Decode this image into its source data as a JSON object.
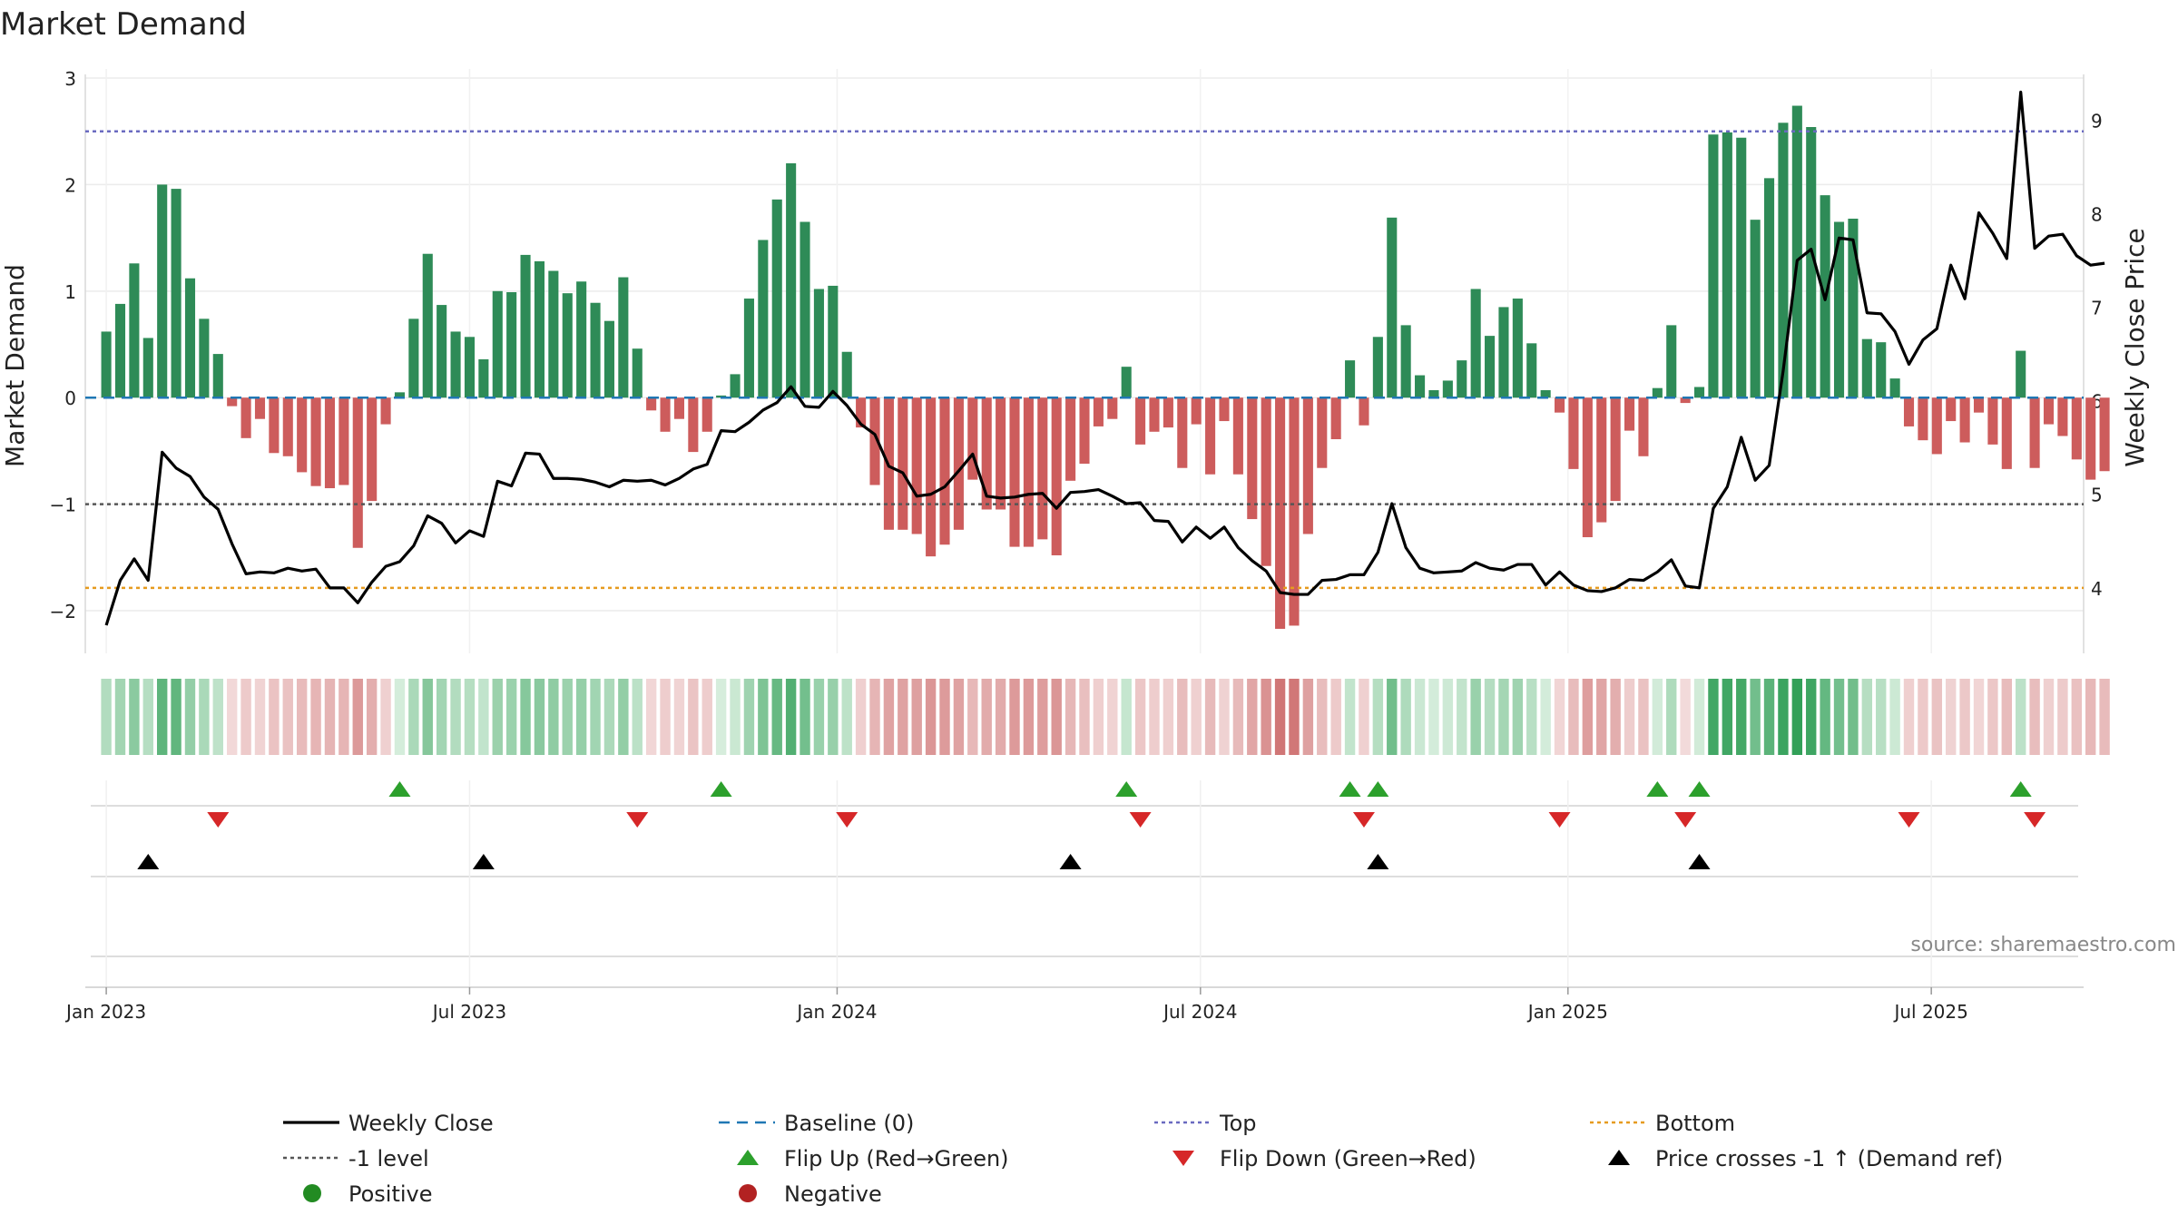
{
  "title": "Market Demand",
  "source": "source: sharemaestro.com",
  "chart_data": {
    "type": "bar",
    "title": "Market Demand",
    "ylabel": "Market Demand",
    "y2label": "Weekly Close Price",
    "ylim": [
      -2.4,
      3.0
    ],
    "y2lim": [
      3.3,
      9.45
    ],
    "yticks": [
      {
        "v": 3,
        "t": "3"
      },
      {
        "v": 2,
        "t": "2"
      },
      {
        "v": 1,
        "t": "1"
      },
      {
        "v": 0,
        "t": "0"
      },
      {
        "v": -1,
        "t": "−1"
      },
      {
        "v": -2,
        "t": "−2"
      }
    ],
    "y2ticks": [
      {
        "v": 9,
        "t": "9"
      },
      {
        "v": 8,
        "t": "8"
      },
      {
        "v": 7,
        "t": "7"
      },
      {
        "v": 6,
        "t": "6"
      },
      {
        "v": 5,
        "t": "5"
      },
      {
        "v": 4,
        "t": "4"
      }
    ],
    "x_start_week": -1.5,
    "x_end_week": 141.5,
    "xticks": [
      {
        "w": 0,
        "t": "Jan 2023"
      },
      {
        "w": 26,
        "t": "Jul 2023"
      },
      {
        "w": 52.3,
        "t": "Jan 2024"
      },
      {
        "w": 78.3,
        "t": "Jul 2024"
      },
      {
        "w": 104.6,
        "t": "Jan 2025"
      },
      {
        "w": 130.6,
        "t": "Jul 2025"
      }
    ],
    "levels": {
      "top": 2.5,
      "minus_one": -1,
      "bottom_price": 4.0,
      "baseline": 0
    },
    "colors": {
      "positive": "#2e8b57",
      "negative": "#cd5c5c",
      "price": "#000000",
      "baseline": "#1f77b4",
      "top": "#6a6ac0",
      "minus_one": "#555555",
      "bottom": "#e69b1f",
      "flip_up": "#2ca02c",
      "flip_down": "#d62728",
      "cross": "#000000"
    },
    "series": [
      {
        "name": "Market Demand",
        "values": [
          0.62,
          0.88,
          1.26,
          0.56,
          2.0,
          1.96,
          1.12,
          0.74,
          0.41,
          -0.08,
          -0.38,
          -0.2,
          -0.52,
          -0.55,
          -0.7,
          -0.83,
          -0.85,
          -0.82,
          -1.41,
          -0.97,
          -0.25,
          0.05,
          0.74,
          1.35,
          0.87,
          0.62,
          0.57,
          0.36,
          1.0,
          0.99,
          1.34,
          1.28,
          1.19,
          0.98,
          1.09,
          0.89,
          0.72,
          1.13,
          0.46,
          -0.12,
          -0.32,
          -0.2,
          -0.51,
          -0.32,
          0.02,
          0.22,
          0.93,
          1.48,
          1.86,
          2.2,
          1.65,
          1.02,
          1.05,
          0.43,
          -0.28,
          -0.82,
          -1.24,
          -1.24,
          -1.28,
          -1.49,
          -1.38,
          -1.24,
          -0.77,
          -1.05,
          -1.05,
          -1.4,
          -1.4,
          -1.33,
          -1.48,
          -0.78,
          -0.62,
          -0.27,
          -0.2,
          0.29,
          -0.44,
          -0.32,
          -0.28,
          -0.66,
          -0.25,
          -0.72,
          -0.22,
          -0.72,
          -1.14,
          -1.58,
          -2.17,
          -2.14,
          -1.28,
          -0.66,
          -0.39,
          0.35,
          -0.26,
          0.57,
          1.69,
          0.68,
          0.21,
          0.07,
          0.16,
          0.35,
          1.02,
          0.58,
          0.85,
          0.93,
          0.51,
          0.07,
          -0.14,
          -0.67,
          -1.31,
          -1.17,
          -0.97,
          -0.31,
          -0.55,
          0.09,
          0.68,
          -0.05,
          0.1,
          2.47,
          2.49,
          2.44,
          1.67,
          2.06,
          2.58,
          2.74,
          2.54,
          1.9,
          1.65,
          1.68,
          0.55,
          0.52,
          0.18,
          -0.27,
          -0.4,
          -0.53,
          -0.22,
          -0.42,
          -0.14,
          -0.44,
          -0.67,
          0.44,
          -0.66,
          -0.25,
          -0.36,
          -0.58,
          -0.77,
          -0.69
        ]
      },
      {
        "name": "Weekly Close",
        "values": [
          3.6,
          4.08,
          4.31,
          4.08,
          5.45,
          5.28,
          5.19,
          4.97,
          4.84,
          4.47,
          4.15,
          4.17,
          4.16,
          4.21,
          4.18,
          4.2,
          4.0,
          4.0,
          3.84,
          4.06,
          4.23,
          4.28,
          4.45,
          4.77,
          4.69,
          4.48,
          4.61,
          4.55,
          5.14,
          5.09,
          5.44,
          5.43,
          5.17,
          5.17,
          5.16,
          5.13,
          5.08,
          5.15,
          5.14,
          5.15,
          5.1,
          5.17,
          5.27,
          5.32,
          5.68,
          5.67,
          5.77,
          5.9,
          5.98,
          6.15,
          5.94,
          5.93,
          6.1,
          5.95,
          5.75,
          5.64,
          5.3,
          5.23,
          4.98,
          5.0,
          5.08,
          5.25,
          5.43,
          4.98,
          4.96,
          4.97,
          5.0,
          5.01,
          4.85,
          5.02,
          5.03,
          5.05,
          4.98,
          4.9,
          4.91,
          4.72,
          4.71,
          4.49,
          4.65,
          4.53,
          4.65,
          4.43,
          4.29,
          4.18,
          3.95,
          3.93,
          3.93,
          4.08,
          4.09,
          4.14,
          4.14,
          4.38,
          4.9,
          4.43,
          4.21,
          4.16,
          4.17,
          4.18,
          4.27,
          4.21,
          4.19,
          4.25,
          4.25,
          4.03,
          4.17,
          4.03,
          3.97,
          3.96,
          4.0,
          4.09,
          4.08,
          4.17,
          4.3,
          4.02,
          4.0,
          4.85,
          5.08,
          5.61,
          5.15,
          5.31,
          6.32,
          7.5,
          7.62,
          7.08,
          7.74,
          7.72,
          6.94,
          6.93,
          6.74,
          6.39,
          6.65,
          6.77,
          7.45,
          7.09,
          8.01,
          7.79,
          7.52,
          9.3,
          7.63,
          7.76,
          7.78,
          7.55,
          7.45,
          7.47
        ]
      }
    ],
    "flip_up_weeks": [
      21,
      44,
      73,
      89,
      91,
      111,
      114,
      137
    ],
    "flip_down_weeks": [
      8,
      38,
      53,
      74,
      90,
      104,
      113,
      129,
      138
    ],
    "cross_weeks": [
      3,
      27,
      69,
      91,
      114
    ]
  },
  "legend": [
    {
      "label": "Weekly Close",
      "symbol": "solid-line",
      "color": "#000000"
    },
    {
      "label": "Baseline (0)",
      "symbol": "dash-line",
      "color": "#1f77b4"
    },
    {
      "label": "Top",
      "symbol": "dot-line",
      "color": "#6a6ac0"
    },
    {
      "label": "Bottom",
      "symbol": "dot-line",
      "color": "#e69b1f"
    },
    {
      "label": "-1 level",
      "symbol": "dot-line",
      "color": "#555555"
    },
    {
      "label": "Flip Up (Red→Green)",
      "symbol": "triangle-up",
      "color": "#2ca02c"
    },
    {
      "label": "Flip Down (Green→Red)",
      "symbol": "triangle-down",
      "color": "#d62728"
    },
    {
      "label": "Price crosses -1 ↑ (Demand ref)",
      "symbol": "triangle-up",
      "color": "#000000"
    },
    {
      "label": "Positive",
      "symbol": "circle",
      "color": "#228b22"
    },
    {
      "label": "Negative",
      "symbol": "circle",
      "color": "#b22222"
    }
  ]
}
